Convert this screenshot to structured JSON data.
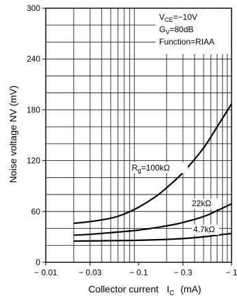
{
  "chart_data": {
    "type": "line",
    "x_scale": "log",
    "xlim": [
      -0.01,
      -1
    ],
    "ylim": [
      0,
      300
    ],
    "x_ticks": [
      {
        "value": -0.01,
        "label": "− 0.01"
      },
      {
        "value": -0.03,
        "label": "− 0.03"
      },
      {
        "value": -0.1,
        "label": "− 0.1"
      },
      {
        "value": -0.3,
        "label": "− 0.3"
      },
      {
        "value": -1,
        "label": "− 1"
      }
    ],
    "y_ticks": [
      {
        "value": 0,
        "label": "0"
      },
      {
        "value": 60,
        "label": "60"
      },
      {
        "value": 120,
        "label": "120"
      },
      {
        "value": 180,
        "label": "180"
      },
      {
        "value": 240,
        "label": "240"
      },
      {
        "value": 300,
        "label": "300"
      }
    ],
    "xlabel": {
      "main": "Collector current",
      "symbol": "I",
      "sub": "C",
      "unit": "(mA)"
    },
    "ylabel": "Noise voltage  NV  (mV)",
    "grid": true,
    "conditions": [
      {
        "main": "V",
        "sub": "CE",
        "rest": "=−10V"
      },
      {
        "main": "G",
        "sub": "V",
        "rest": "=80dB"
      },
      {
        "main": "Function=RIAA",
        "sub": "",
        "rest": ""
      }
    ],
    "series": [
      {
        "name": {
          "main": "R",
          "sub": "g",
          "rest": "=100kΩ"
        },
        "x": [
          -0.02,
          -0.03,
          -0.05,
          -0.07,
          -0.1,
          -0.15,
          -0.2,
          -0.3,
          -0.5,
          -0.7,
          -1
        ],
        "y": [
          46,
          48,
          52,
          57,
          65,
          77,
          88,
          106,
          135,
          160,
          187
        ]
      },
      {
        "name": {
          "main": "22kΩ",
          "sub": "",
          "rest": ""
        },
        "x": [
          -0.02,
          -0.03,
          -0.05,
          -0.1,
          -0.2,
          -0.3,
          -0.5,
          -0.7,
          -1
        ],
        "y": [
          32,
          33,
          35,
          38,
          43,
          47,
          54,
          61,
          69
        ]
      },
      {
        "name": {
          "main": "4.7kΩ",
          "sub": "",
          "rest": ""
        },
        "x": [
          -0.02,
          -0.05,
          -0.1,
          -0.2,
          -0.3,
          -0.5,
          -0.7,
          -1
        ],
        "y": [
          25,
          25.5,
          26,
          27,
          28,
          30,
          32,
          34
        ]
      }
    ]
  }
}
